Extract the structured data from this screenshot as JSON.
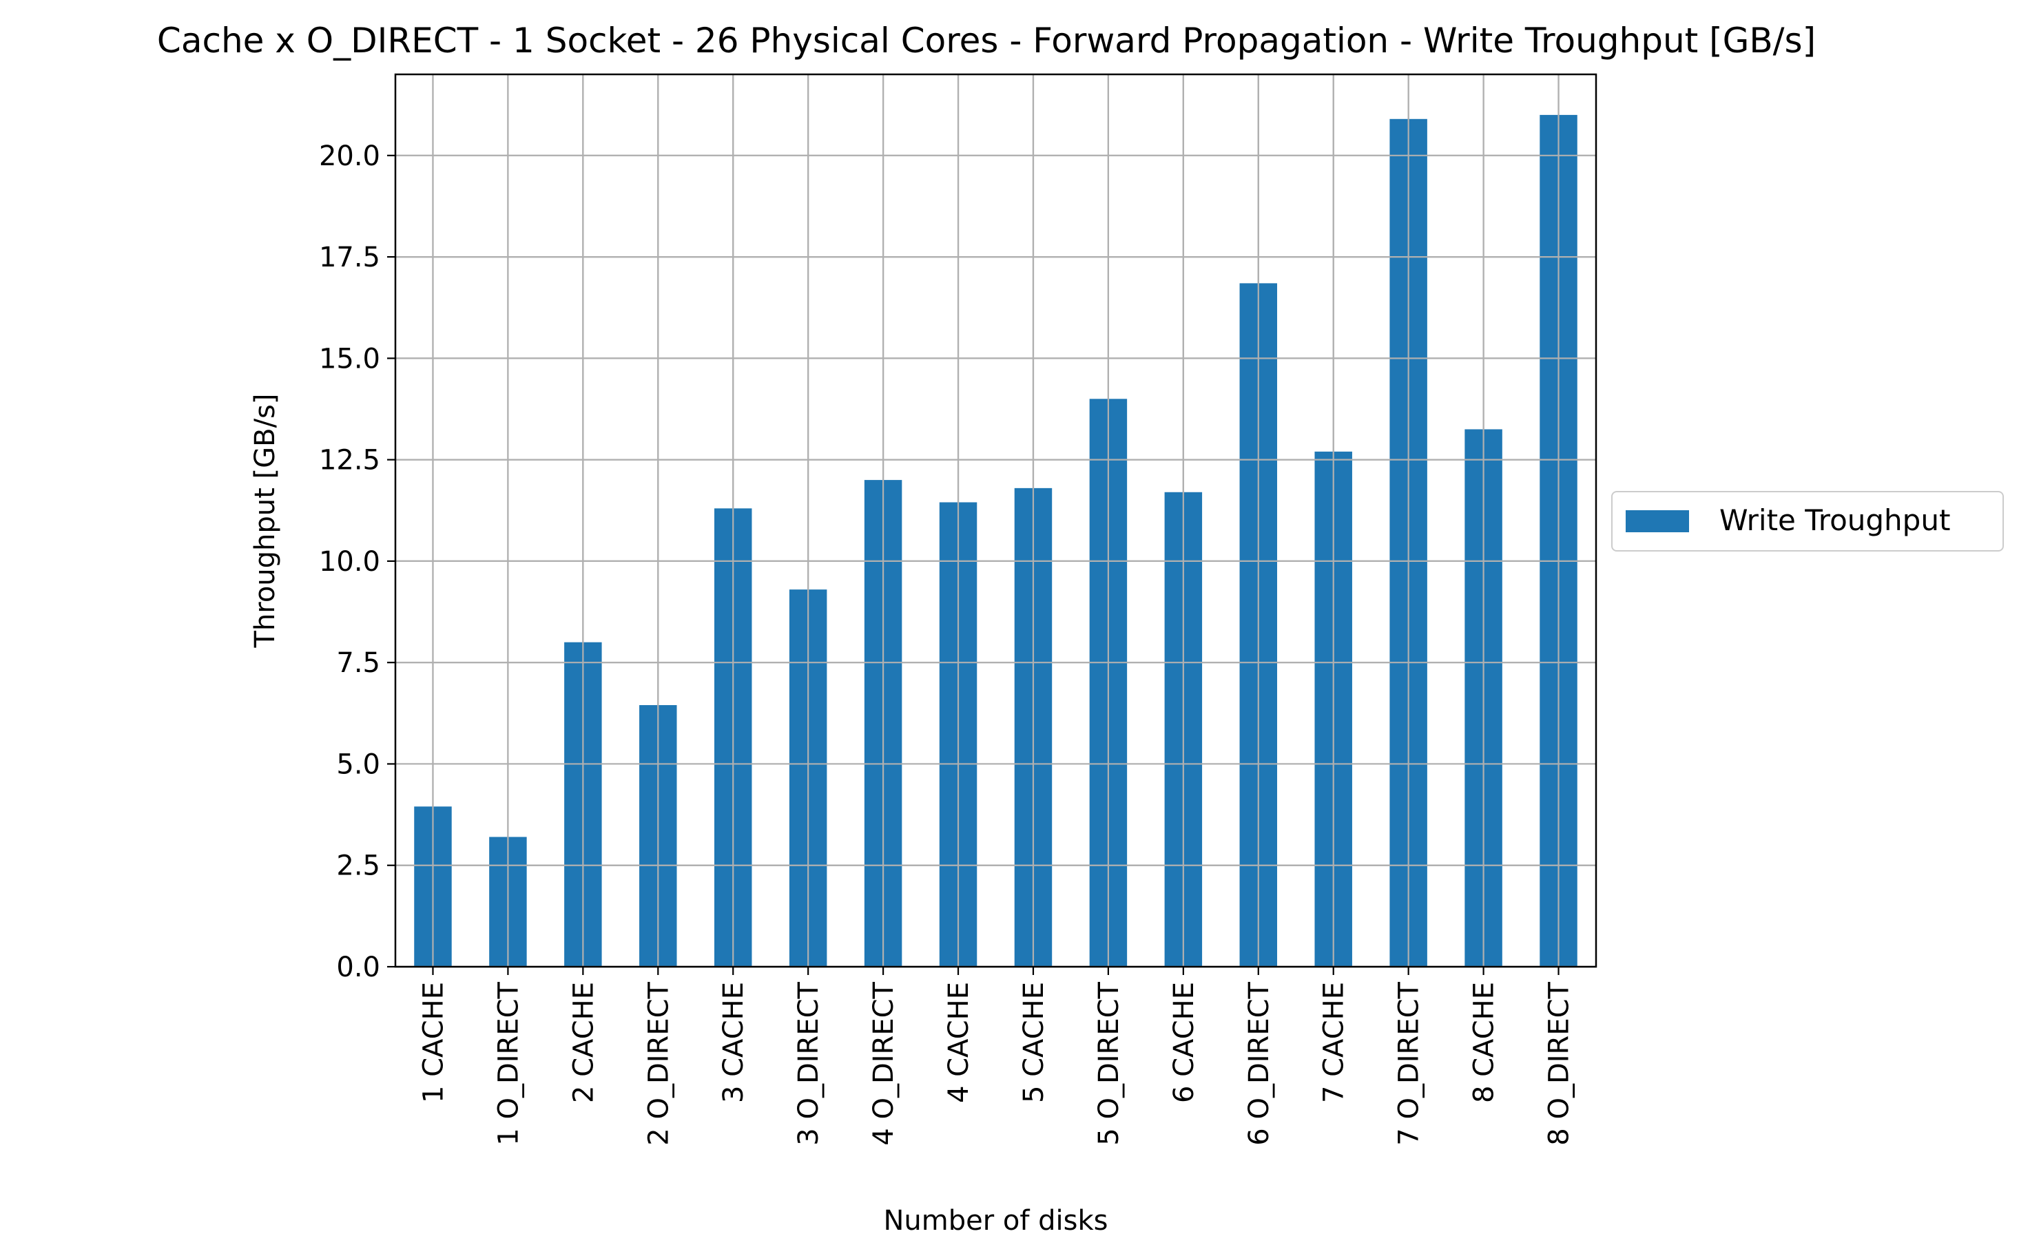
{
  "chart_data": {
    "type": "bar",
    "title": "Cache x O_DIRECT - 1 Socket - 26 Physical Cores - Forward Propagation - Write Troughput [GB/s]",
    "xlabel": "Number of disks",
    "ylabel": "Throughput [GB/s]",
    "ylim": [
      0,
      22
    ],
    "yticks": [
      "0.0",
      "2.5",
      "5.0",
      "7.5",
      "10.0",
      "12.5",
      "15.0",
      "17.5",
      "20.0"
    ],
    "grid": true,
    "legend_position": "center-right-outside",
    "categories": [
      "1 CACHE",
      "1 O_DIRECT",
      "2 CACHE",
      "2 O_DIRECT",
      "3 CACHE",
      "3 O_DIRECT",
      "4 O_DIRECT",
      "4 CACHE",
      "5 CACHE",
      "5 O_DIRECT",
      "6 CACHE",
      "6 O_DIRECT",
      "7 CACHE",
      "7 O_DIRECT",
      "8 CACHE",
      "8 O_DIRECT"
    ],
    "series": [
      {
        "name": "Write Troughput",
        "color": "#1f77b4",
        "values": [
          3.95,
          3.2,
          8.0,
          6.45,
          11.3,
          9.3,
          12.0,
          11.45,
          11.8,
          14.0,
          11.7,
          16.85,
          12.7,
          20.9,
          13.25,
          21.0
        ]
      }
    ]
  }
}
